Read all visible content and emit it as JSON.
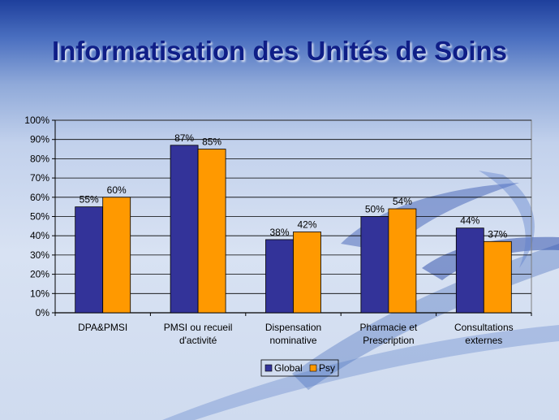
{
  "title": "Informatisation des Unités de Soins",
  "colors": {
    "global": "#333399",
    "psy": "#ff9900"
  },
  "chart_data": {
    "type": "bar",
    "title": "",
    "xlabel": "",
    "ylabel": "",
    "ylim": [
      0,
      100
    ],
    "yticks": [
      "0%",
      "10%",
      "20%",
      "30%",
      "40%",
      "50%",
      "60%",
      "70%",
      "80%",
      "90%",
      "100%"
    ],
    "categories": [
      [
        "DPA&PMSI"
      ],
      [
        "PMSI ou recueil",
        "d'activité"
      ],
      [
        "Dispensation",
        "nominative"
      ],
      [
        "Pharmacie et",
        "Prescription"
      ],
      [
        "Consultations",
        "externes"
      ]
    ],
    "series": [
      {
        "name": "Global",
        "values": [
          55,
          87,
          38,
          50,
          44
        ],
        "labels": [
          "55%",
          "87%",
          "38%",
          "50%",
          "44%"
        ]
      },
      {
        "name": "Psy",
        "values": [
          60,
          85,
          42,
          54,
          37
        ],
        "labels": [
          "60%",
          "85%",
          "42%",
          "54%",
          "37%"
        ]
      }
    ],
    "grid": true,
    "legend": "bottom-center"
  }
}
